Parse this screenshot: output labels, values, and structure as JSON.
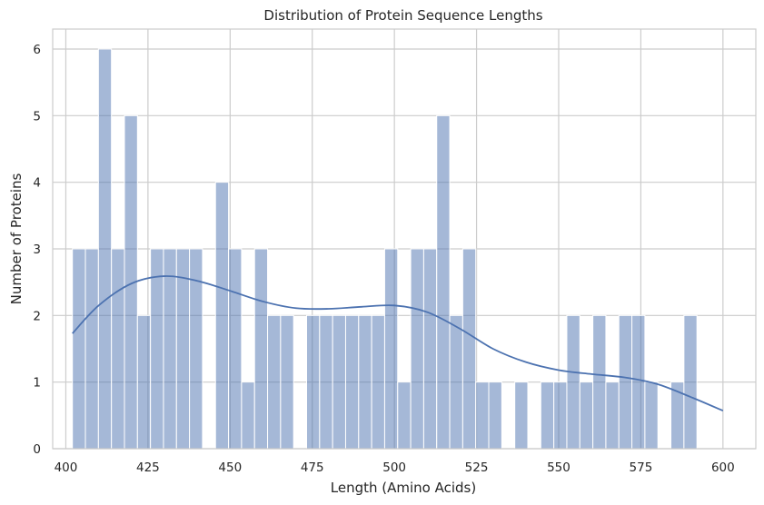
{
  "chart_data": {
    "type": "bar",
    "title": "Distribution of Protein Sequence Lengths",
    "xlabel": "Length (Amino Acids)",
    "ylabel": "Number of Proteins",
    "xlim": [
      396,
      610
    ],
    "ylim": [
      0,
      6.3
    ],
    "x_ticks": [
      400,
      425,
      450,
      475,
      500,
      525,
      550,
      575,
      600
    ],
    "y_ticks": [
      0,
      1,
      2,
      3,
      4,
      5,
      6
    ],
    "grid": true,
    "colors": {
      "bar": "#4c72b0",
      "line": "#4c72b0",
      "grid": "#cccccc"
    },
    "bin_start": 402,
    "bin_width": 3.96,
    "series": [
      {
        "type": "histogram",
        "values": [
          3,
          3,
          6,
          3,
          5,
          2,
          3,
          3,
          3,
          3,
          0,
          4,
          3,
          1,
          3,
          2,
          2,
          0,
          2,
          2,
          2,
          2,
          2,
          2,
          3,
          1,
          3,
          3,
          5,
          2,
          3,
          1,
          1,
          0,
          1,
          0,
          1,
          1,
          2,
          1,
          2,
          1,
          2,
          2,
          1,
          0,
          1,
          2
        ]
      },
      {
        "type": "kde",
        "x": [
          402,
          410,
          420,
          430,
          440,
          450,
          460,
          470,
          480,
          490,
          500,
          510,
          520,
          530,
          540,
          550,
          560,
          570,
          580,
          590,
          600
        ],
        "values": [
          1.73,
          2.15,
          2.48,
          2.59,
          2.52,
          2.37,
          2.21,
          2.11,
          2.1,
          2.13,
          2.15,
          2.05,
          1.8,
          1.5,
          1.3,
          1.18,
          1.12,
          1.07,
          0.97,
          0.78,
          0.57
        ]
      }
    ]
  }
}
